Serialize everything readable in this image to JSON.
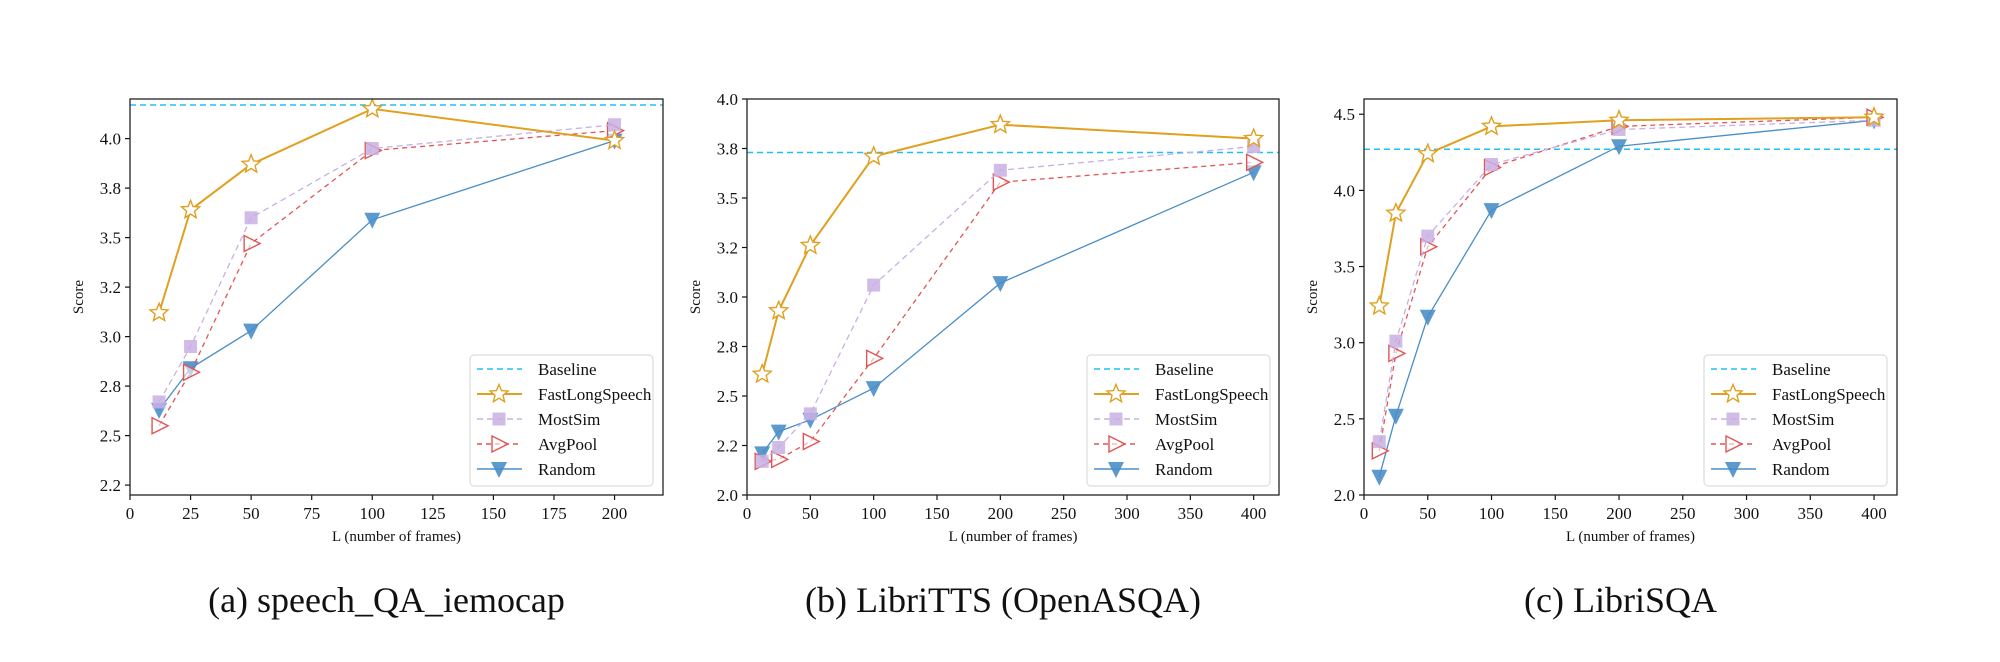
{
  "series_styles": {
    "Baseline": {
      "color": "#1ec0f5",
      "dash": "6,4",
      "marker": "none"
    },
    "FastLongSpeech": {
      "color": "#e0a020",
      "dash": "",
      "marker": "star"
    },
    "MostSim": {
      "color": "#c9b0e4",
      "dash": "6,4",
      "marker": "square"
    },
    "AvgPool": {
      "color": "#e05555",
      "dash": "5,4",
      "marker": "triangle-right"
    },
    "Random": {
      "color": "#4a8ec6",
      "dash": "",
      "marker": "triangle-down"
    }
  },
  "legend_order": [
    "Baseline",
    "FastLongSpeech",
    "MostSim",
    "AvgPool",
    "Random"
  ],
  "chart_data": [
    {
      "type": "line",
      "caption": "(a) speech_QA_iemocap",
      "xlabel": "L (number of frames)",
      "ylabel": "Score",
      "xlim": [
        0,
        220
      ],
      "ylim": [
        2.2,
        4.2
      ],
      "xticks": [
        0,
        25,
        50,
        75,
        100,
        125,
        150,
        175,
        200
      ],
      "xtick_labels": [
        "0",
        "25",
        "50",
        "75",
        "100",
        "125",
        "150",
        "175",
        "200"
      ],
      "yticks": [
        2.25,
        2.5,
        2.75,
        3.0,
        3.25,
        3.5,
        3.75,
        4.0
      ],
      "ytick_labels": [
        "2.2",
        "2.5",
        "2.8",
        "3.0",
        "3.2",
        "3.5",
        "3.8",
        "4.0"
      ],
      "legend": "lower-right",
      "grid": false,
      "baseline": 4.17,
      "x": [
        12,
        25,
        50,
        100,
        200
      ],
      "series": [
        {
          "name": "FastLongSpeech",
          "values": [
            3.12,
            3.64,
            3.87,
            4.15,
            3.99
          ]
        },
        {
          "name": "MostSim",
          "values": [
            2.67,
            2.95,
            3.6,
            3.95,
            4.07
          ]
        },
        {
          "name": "AvgPool",
          "values": [
            2.55,
            2.82,
            3.47,
            3.94,
            4.04
          ]
        },
        {
          "name": "Random",
          "values": [
            2.63,
            2.84,
            3.03,
            3.59,
            3.99
          ]
        }
      ]
    },
    {
      "type": "line",
      "caption": "(b) LibriTTS (OpenASQA)",
      "xlabel": "L (number of frames)",
      "ylabel": "Score",
      "xlim": [
        0,
        420
      ],
      "ylim": [
        2.0,
        4.0
      ],
      "xticks": [
        0,
        50,
        100,
        150,
        200,
        250,
        300,
        350,
        400
      ],
      "xtick_labels": [
        "0",
        "50",
        "100",
        "150",
        "200",
        "250",
        "300",
        "350",
        "400"
      ],
      "yticks": [
        2.0,
        2.25,
        2.5,
        2.75,
        3.0,
        3.25,
        3.5,
        3.75,
        4.0
      ],
      "ytick_labels": [
        "2.0",
        "2.2",
        "2.5",
        "2.8",
        "3.0",
        "3.2",
        "3.5",
        "3.8",
        "4.0"
      ],
      "legend": "lower-right",
      "grid": false,
      "baseline": 3.73,
      "x": [
        12,
        25,
        50,
        100,
        200,
        400
      ],
      "series": [
        {
          "name": "FastLongSpeech",
          "values": [
            2.61,
            2.93,
            3.26,
            3.71,
            3.87,
            3.8
          ]
        },
        {
          "name": "MostSim",
          "values": [
            2.17,
            2.24,
            2.41,
            3.06,
            3.64,
            3.76
          ]
        },
        {
          "name": "AvgPool",
          "values": [
            2.17,
            2.18,
            2.27,
            2.69,
            3.58,
            3.68
          ]
        },
        {
          "name": "Random",
          "values": [
            2.21,
            2.32,
            2.38,
            2.54,
            3.07,
            3.63
          ]
        }
      ]
    },
    {
      "type": "line",
      "caption": "(c) LibriSQA",
      "xlabel": "L (number of frames)",
      "ylabel": "Score",
      "xlim": [
        0,
        418
      ],
      "ylim": [
        2.0,
        4.6
      ],
      "xticks": [
        0,
        50,
        100,
        150,
        200,
        250,
        300,
        350,
        400
      ],
      "xtick_labels": [
        "0",
        "50",
        "100",
        "150",
        "200",
        "250",
        "300",
        "350",
        "400"
      ],
      "yticks": [
        2.0,
        2.5,
        3.0,
        3.5,
        4.0,
        4.5
      ],
      "ytick_labels": [
        "2.0",
        "2.5",
        "3.0",
        "3.5",
        "4.0",
        "4.5"
      ],
      "legend": "lower-right",
      "grid": false,
      "baseline": 4.27,
      "x": [
        12,
        25,
        50,
        100,
        200,
        400
      ],
      "series": [
        {
          "name": "FastLongSpeech",
          "values": [
            3.24,
            3.85,
            4.24,
            4.42,
            4.46,
            4.48
          ]
        },
        {
          "name": "MostSim",
          "values": [
            2.35,
            3.01,
            3.7,
            4.17,
            4.4,
            4.46
          ]
        },
        {
          "name": "AvgPool",
          "values": [
            2.29,
            2.93,
            3.63,
            4.15,
            4.42,
            4.48
          ]
        },
        {
          "name": "Random",
          "values": [
            2.12,
            2.52,
            3.17,
            3.87,
            4.29,
            4.46
          ]
        }
      ]
    }
  ]
}
